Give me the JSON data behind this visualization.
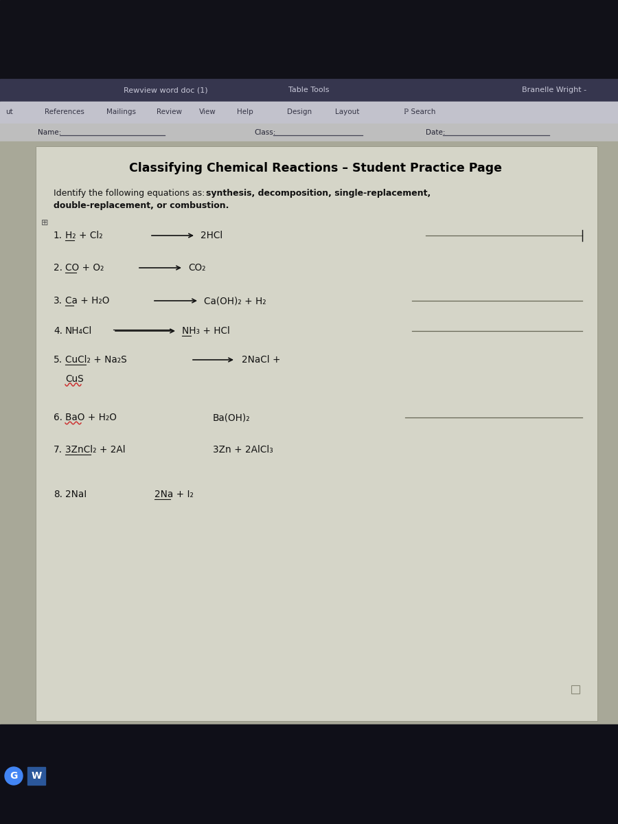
{
  "bg_very_dark": "#111118",
  "bg_titlebar": "#35354a",
  "bg_ribbon": "#b8b8c8",
  "bg_content_outer": "#a8a898",
  "bg_doc": "#d8d8cc",
  "titlebar_text": "Rewview word doc (1)",
  "titlebar_center": "Table Tools",
  "titlebar_right": "Branelle Wright -",
  "ribbon_y_items": [
    [
      8,
      "ut"
    ],
    [
      65,
      "References"
    ],
    [
      155,
      "Mailings"
    ],
    [
      228,
      "Review"
    ],
    [
      290,
      "View"
    ],
    [
      345,
      "Help"
    ],
    [
      418,
      "Design"
    ],
    [
      488,
      "Layout"
    ],
    [
      588,
      "ℙ Search"
    ]
  ],
  "name_label": "Name:",
  "class_label": "Class:",
  "date_label": "Date:",
  "title": "Classifying Chemical Reactions – Student Practice Page",
  "eq1_react": "H₂ + Cl₂",
  "eq1_prod": "2HCl",
  "eq2_react": "CO + O₂",
  "eq2_prod": "CO₂",
  "eq3_react": "Ca + H₂O",
  "eq3_prod": "Ca(OH)₂ + H₂",
  "eq4_react": "NH₄Cl",
  "eq4_prod": "NH₃ + HCl",
  "eq5_react": "CuCl₂ + Na₂S",
  "eq5_prod": "2NaCl +",
  "eq5_prod2": "CuS",
  "eq6_react": "BaO + H₂O",
  "eq6_prod": "Ba(OH)₂",
  "eq7_react": "3ZnCl₂ + 2Al",
  "eq7_prod": "3Zn + 2AlCl₃",
  "eq8_react": "2NaI",
  "eq8_prod": "2Na + I₂",
  "intro_normal": "Identify the following equations as: ",
  "intro_bold": "synthesis, decomposition, single-replacement,",
  "intro_bold2": "double-replacement, or combustion.",
  "text_color": "#111111",
  "line_color": "#555555",
  "taskbar_bg": "#0f0f18",
  "taskbar_g_color": "#4285F4",
  "taskbar_w_color": "#2b579a"
}
